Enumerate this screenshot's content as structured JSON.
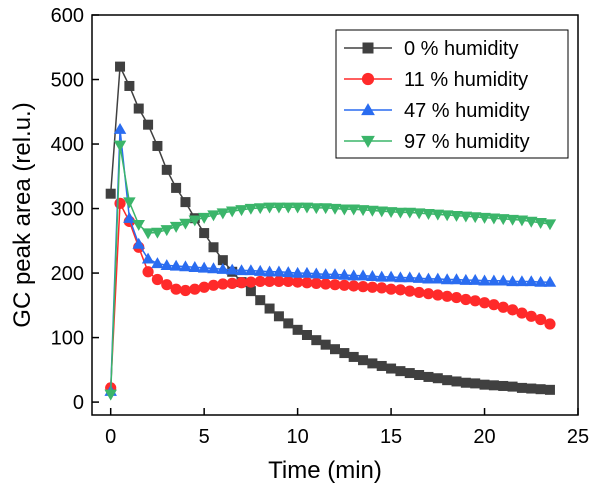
{
  "chart_data": {
    "type": "line",
    "xlabel": "Time (min)",
    "ylabel": "GC peak area (rel.u.)",
    "xlim": [
      -1,
      25
    ],
    "ylim": [
      -20,
      600
    ],
    "xticks": [
      0,
      5,
      10,
      15,
      20,
      25
    ],
    "yticks": [
      0,
      100,
      200,
      300,
      400,
      500,
      600
    ],
    "legend_position": "top-right",
    "series": [
      {
        "name": "0 % humidity",
        "color": "#404040",
        "marker": "square",
        "x": [
          0,
          0.5,
          1,
          1.5,
          2,
          2.5,
          3,
          3.5,
          4,
          4.5,
          5,
          5.5,
          6,
          6.5,
          7,
          7.5,
          8,
          8.5,
          9,
          9.5,
          10,
          10.5,
          11,
          11.5,
          12,
          12.5,
          13,
          13.5,
          14,
          14.5,
          15,
          15.5,
          16,
          16.5,
          17,
          17.5,
          18,
          18.5,
          19,
          19.5,
          20,
          20.5,
          21,
          21.5,
          22,
          22.5,
          23,
          23.5
        ],
        "y": [
          323,
          520,
          490,
          455,
          430,
          397,
          360,
          332,
          310,
          285,
          262,
          240,
          220,
          202,
          186,
          172,
          158,
          145,
          133,
          122,
          112,
          104,
          96,
          89,
          82,
          76,
          70,
          65,
          60,
          56,
          52,
          48,
          45,
          42,
          39,
          37,
          34,
          32,
          30,
          29,
          27,
          26,
          25,
          24,
          22,
          21,
          20,
          19
        ]
      },
      {
        "name": "11 % humidity",
        "color": "#ff2a2a",
        "marker": "circle",
        "x": [
          0,
          0.5,
          1,
          1.5,
          2,
          2.5,
          3,
          3.5,
          4,
          4.5,
          5,
          5.5,
          6,
          6.5,
          7,
          7.5,
          8,
          8.5,
          9,
          9.5,
          10,
          10.5,
          11,
          11.5,
          12,
          12.5,
          13,
          13.5,
          14,
          14.5,
          15,
          15.5,
          16,
          16.5,
          17,
          17.5,
          18,
          18.5,
          19,
          19.5,
          20,
          20.5,
          21,
          21.5,
          22,
          22.5,
          23,
          23.5
        ],
        "y": [
          22,
          308,
          280,
          240,
          202,
          190,
          182,
          175,
          173,
          175,
          178,
          181,
          183,
          184,
          185,
          186,
          187,
          187,
          187,
          187,
          186,
          185,
          184,
          183,
          182,
          181,
          180,
          179,
          178,
          177,
          175,
          174,
          172,
          170,
          168,
          166,
          164,
          162,
          159,
          157,
          154,
          151,
          147,
          143,
          138,
          133,
          128,
          121
        ]
      },
      {
        "name": "47 % humidity",
        "color": "#2a6cf0",
        "marker": "triangle-up",
        "x": [
          0,
          0.5,
          1,
          1.5,
          2,
          2.5,
          3,
          3.5,
          4,
          4.5,
          5,
          5.5,
          6,
          6.5,
          7,
          7.5,
          8,
          8.5,
          9,
          9.5,
          10,
          10.5,
          11,
          11.5,
          12,
          12.5,
          13,
          13.5,
          14,
          14.5,
          15,
          15.5,
          16,
          16.5,
          17,
          17.5,
          18,
          18.5,
          19,
          19.5,
          20,
          20.5,
          21,
          21.5,
          22,
          22.5,
          23,
          23.5
        ],
        "y": [
          17,
          423,
          285,
          245,
          222,
          215,
          212,
          211,
          210,
          209,
          208,
          207,
          206,
          205,
          204,
          204,
          203,
          202,
          202,
          201,
          200,
          200,
          199,
          198,
          198,
          197,
          196,
          196,
          195,
          194,
          194,
          193,
          193,
          192,
          191,
          191,
          190,
          190,
          189,
          189,
          188,
          188,
          188,
          187,
          187,
          187,
          186,
          186
        ]
      },
      {
        "name": "97 % humidity",
        "color": "#3bb56a",
        "marker": "triangle-down",
        "x": [
          0,
          0.5,
          1,
          1.5,
          2,
          2.5,
          3,
          3.5,
          4,
          4.5,
          5,
          5.5,
          6,
          6.5,
          7,
          7.5,
          8,
          8.5,
          9,
          9.5,
          10,
          10.5,
          11,
          11.5,
          12,
          12.5,
          13,
          13.5,
          14,
          14.5,
          15,
          15.5,
          16,
          16.5,
          17,
          17.5,
          18,
          18.5,
          19,
          19.5,
          20,
          20.5,
          21,
          21.5,
          22,
          22.5,
          23,
          23.5
        ],
        "y": [
          12,
          398,
          310,
          275,
          262,
          263,
          267,
          272,
          277,
          282,
          286,
          290,
          293,
          296,
          298,
          300,
          301,
          302,
          302,
          302,
          302,
          302,
          301,
          301,
          300,
          299,
          299,
          298,
          297,
          296,
          295,
          294,
          294,
          293,
          292,
          291,
          290,
          289,
          288,
          287,
          286,
          285,
          284,
          283,
          282,
          280,
          278,
          276
        ]
      }
    ]
  }
}
